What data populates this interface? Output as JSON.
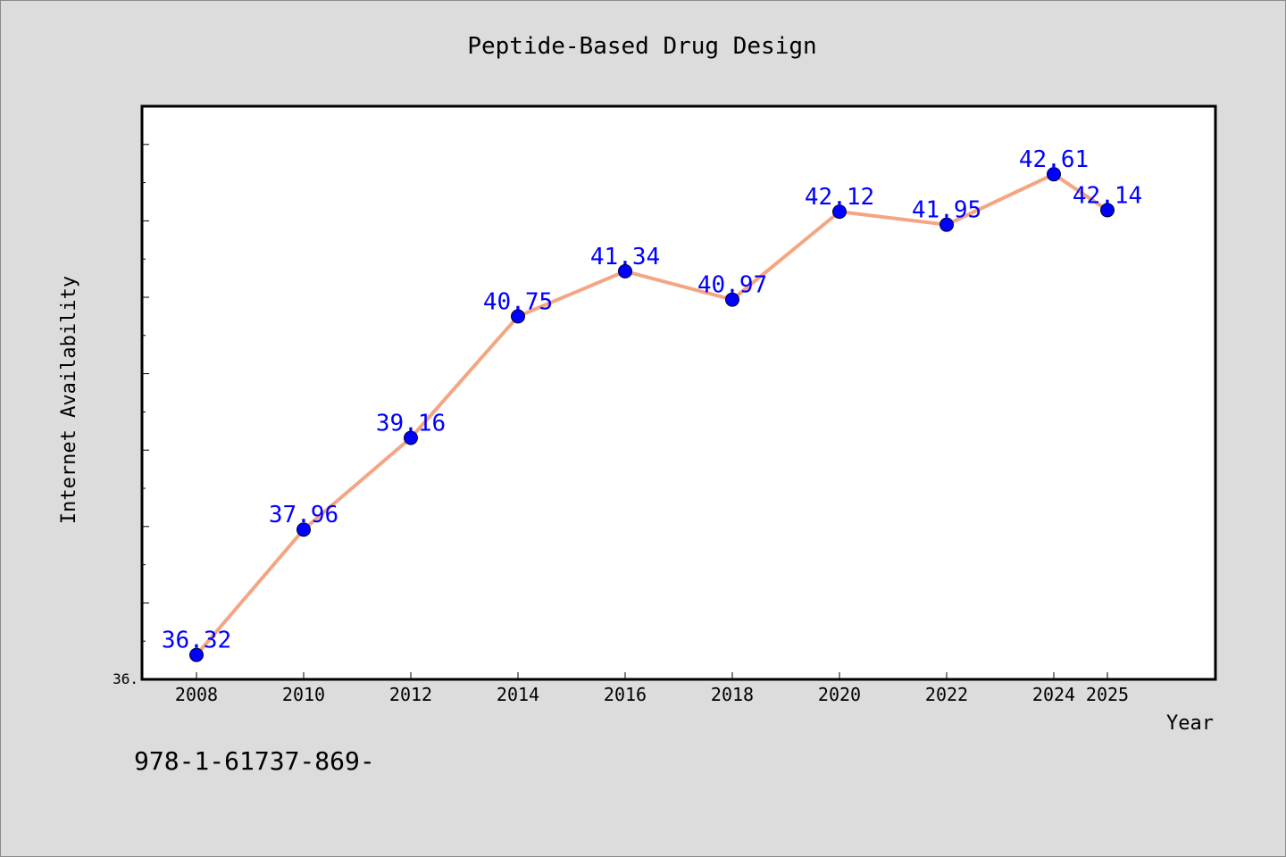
{
  "chart_data": {
    "type": "line",
    "title": "Peptide-Based Drug Design",
    "xlabel": "Year",
    "ylabel": "Internet Availability",
    "x": [
      "2008",
      "2010",
      "2012",
      "2014",
      "2016",
      "2018",
      "2020",
      "2022",
      "2024",
      "2025"
    ],
    "series": [
      {
        "values": [
          36.32,
          37.96,
          39.16,
          40.75,
          41.34,
          40.97,
          42.12,
          41.95,
          42.61,
          42.14
        ],
        "line_color": "#f4a582",
        "marker_color": "#0000ff"
      }
    ],
    "data_labels": [
      "36.32",
      "37.96",
      "39.16",
      "40.75",
      "41.34",
      "40.97",
      "42.12",
      "41.95",
      "42.61",
      "42.14"
    ],
    "y_tick_labels": [
      "36."
    ],
    "ylim": [
      36.0,
      43.5
    ],
    "grid": false,
    "legend": "none"
  },
  "footnote": "978-1-61737-869-"
}
